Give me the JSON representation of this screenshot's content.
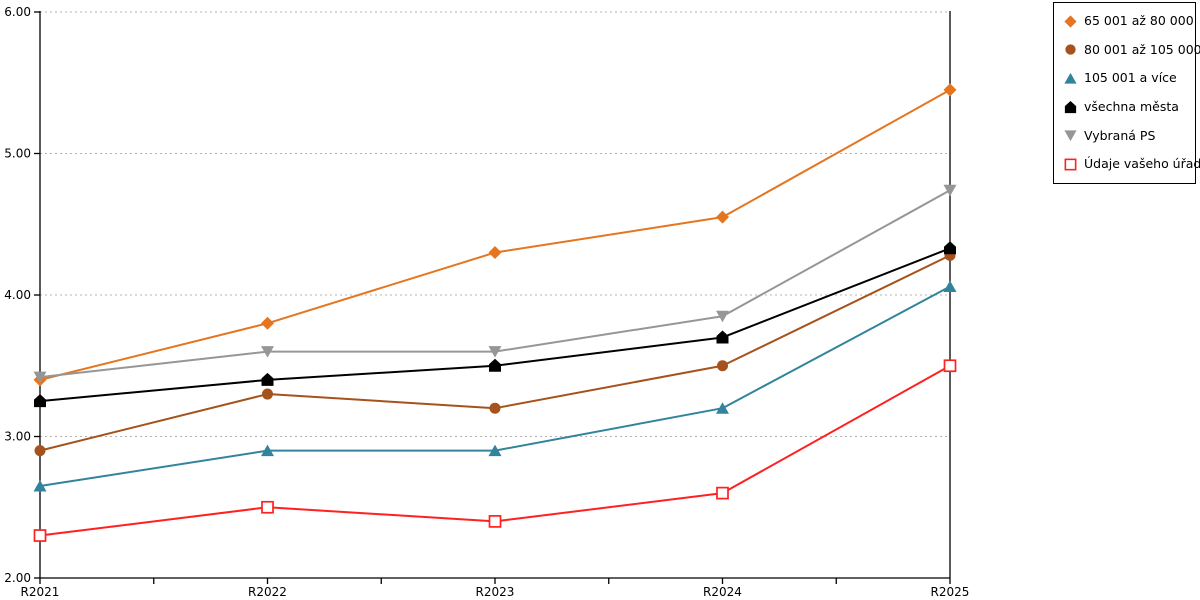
{
  "chart_data": {
    "type": "line",
    "title": "",
    "xlabel": "",
    "ylabel": "",
    "x": [
      "R2021",
      "R2022",
      "R2023",
      "R2024",
      "R2025"
    ],
    "ylim": [
      2.0,
      6.0
    ],
    "yticks": [
      {
        "value": 2.0,
        "label": "2.00"
      },
      {
        "value": 3.0,
        "label": "3.00"
      },
      {
        "value": 4.0,
        "label": "4.00"
      },
      {
        "value": 5.0,
        "label": "5.00"
      },
      {
        "value": 6.0,
        "label": "6.00"
      }
    ],
    "grid": "horizontal-dotted",
    "grid_color": "#b3b3b3",
    "axis_color": "#000000",
    "legend_position": "top-right",
    "series": [
      {
        "name": "65 001 až 80 000",
        "marker": "diamond",
        "color": "#e5751f",
        "values": [
          3.4,
          3.8,
          4.3,
          4.55,
          5.45
        ]
      },
      {
        "name": "80 001 až 105 000",
        "marker": "circle",
        "color": "#a5521d",
        "values": [
          2.9,
          3.3,
          3.2,
          3.5,
          4.28
        ]
      },
      {
        "name": "105 001 a více",
        "marker": "triangle-up",
        "color": "#31849b",
        "values": [
          2.65,
          2.9,
          2.9,
          3.2,
          4.06
        ]
      },
      {
        "name": "všechna města",
        "marker": "pentagon",
        "color": "#000000",
        "values": [
          3.25,
          3.4,
          3.5,
          3.7,
          4.33
        ]
      },
      {
        "name": "Vybraná PS",
        "marker": "triangle-down",
        "color": "#969696",
        "values": [
          3.42,
          3.6,
          3.6,
          3.85,
          4.74
        ]
      },
      {
        "name": "Údaje vašeho úřadu",
        "marker": "square-open",
        "color": "#ff2020",
        "values": [
          2.3,
          2.5,
          2.4,
          2.6,
          3.5
        ]
      }
    ]
  }
}
